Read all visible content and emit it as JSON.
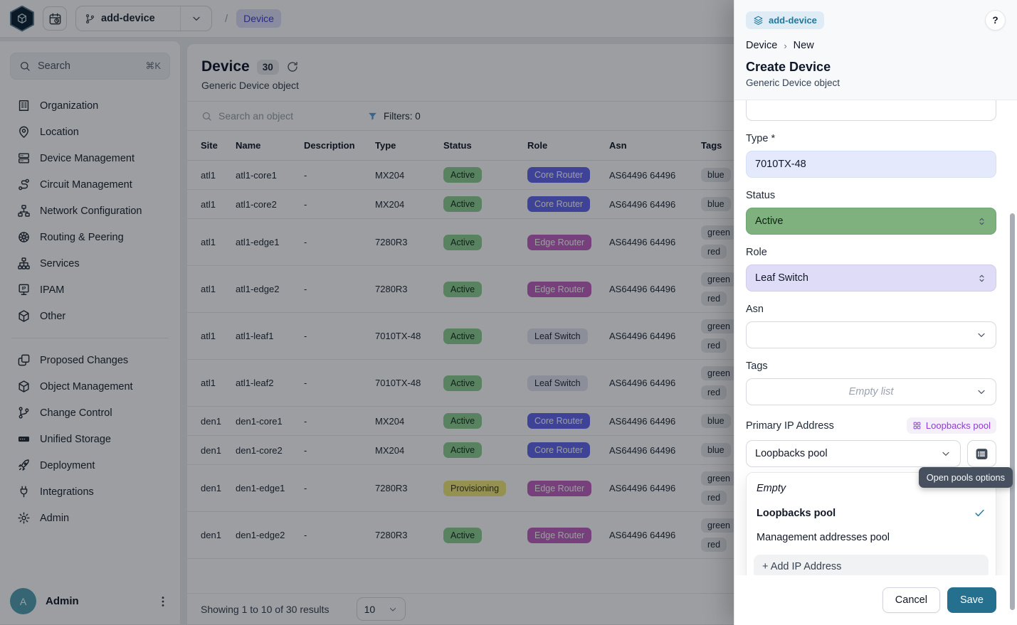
{
  "colors": {
    "save_button": "#26708f",
    "accent_indigo": "#4540c9",
    "branch_badge_teal": "#20789d",
    "status": {
      "Active": {
        "bg": "#8fd095",
        "fg": "#13301a"
      },
      "Provisioning": {
        "bg": "#f2ea7a",
        "fg": "#3d3810"
      }
    },
    "role": {
      "Core Router": {
        "bg": "#6468f0",
        "fg": "#ffffff"
      },
      "Edge Router": {
        "bg": "#c261c2",
        "fg": "#ffffff"
      },
      "Leaf Switch": {
        "bg": "#e4e4f4",
        "fg": "#1f2937"
      }
    }
  },
  "topbar": {
    "branch": "add-device",
    "separator": "/",
    "breadcrumb_current": "Device"
  },
  "sidebar": {
    "search": {
      "label": "Search",
      "shortcut": "⌘K"
    },
    "groups": [
      [
        {
          "label": "Organization",
          "icon": "building-icon"
        },
        {
          "label": "Location",
          "icon": "map-pin-icon"
        },
        {
          "label": "Device Management",
          "icon": "server-icon"
        },
        {
          "label": "Circuit Management",
          "icon": "route-icon"
        },
        {
          "label": "Network Configuration",
          "icon": "network-icon"
        },
        {
          "label": "Routing & Peering",
          "icon": "wheel-icon"
        },
        {
          "label": "Services",
          "icon": "hierarchy-icon"
        },
        {
          "label": "IPAM",
          "icon": "ipam-icon"
        },
        {
          "label": "Other",
          "icon": "cube-icon"
        }
      ],
      [
        {
          "label": "Proposed Changes",
          "icon": "diff-icon"
        },
        {
          "label": "Object Management",
          "icon": "cube-icon"
        },
        {
          "label": "Change Control",
          "icon": "git-branch-icon"
        },
        {
          "label": "Unified Storage",
          "icon": "storage-icon"
        },
        {
          "label": "Deployment",
          "icon": "rocket-icon"
        },
        {
          "label": "Integrations",
          "icon": "plug-icon"
        },
        {
          "label": "Admin",
          "icon": "gear-icon"
        }
      ]
    ],
    "user": {
      "name": "Admin",
      "initial": "A"
    }
  },
  "main": {
    "title": "Device",
    "count": "30",
    "subtitle": "Generic Device object",
    "search_placeholder": "Search an object",
    "filters_label": "Filters: 0",
    "table": {
      "columns": [
        "Site",
        "Name",
        "Description",
        "Type",
        "Status",
        "Role",
        "Asn",
        "Tags"
      ],
      "rows": [
        {
          "site": "atl1",
          "name": "atl1-core1",
          "description": "-",
          "type": "MX204",
          "status": "Active",
          "role": "Core Router",
          "asn": "AS64496 64496",
          "tags": [
            "blue"
          ]
        },
        {
          "site": "atl1",
          "name": "atl1-core2",
          "description": "-",
          "type": "MX204",
          "status": "Active",
          "role": "Core Router",
          "asn": "AS64496 64496",
          "tags": [
            "blue"
          ]
        },
        {
          "site": "atl1",
          "name": "atl1-edge1",
          "description": "-",
          "type": "7280R3",
          "status": "Active",
          "role": "Edge Router",
          "asn": "AS64496 64496",
          "tags": [
            "green",
            "red"
          ]
        },
        {
          "site": "atl1",
          "name": "atl1-edge2",
          "description": "-",
          "type": "7280R3",
          "status": "Active",
          "role": "Edge Router",
          "asn": "AS64496 64496",
          "tags": [
            "green",
            "red"
          ]
        },
        {
          "site": "atl1",
          "name": "atl1-leaf1",
          "description": "-",
          "type": "7010TX-48",
          "status": "Active",
          "role": "Leaf Switch",
          "asn": "AS64496 64496",
          "tags": [
            "green",
            "red"
          ]
        },
        {
          "site": "atl1",
          "name": "atl1-leaf2",
          "description": "-",
          "type": "7010TX-48",
          "status": "Active",
          "role": "Leaf Switch",
          "asn": "AS64496 64496",
          "tags": [
            "green",
            "red"
          ]
        },
        {
          "site": "den1",
          "name": "den1-core1",
          "description": "-",
          "type": "MX204",
          "status": "Active",
          "role": "Core Router",
          "asn": "AS64496 64496",
          "tags": [
            "blue"
          ]
        },
        {
          "site": "den1",
          "name": "den1-core2",
          "description": "-",
          "type": "MX204",
          "status": "Active",
          "role": "Core Router",
          "asn": "AS64496 64496",
          "tags": [
            "blue"
          ]
        },
        {
          "site": "den1",
          "name": "den1-edge1",
          "description": "-",
          "type": "7280R3",
          "status": "Provisioning",
          "role": "Edge Router",
          "asn": "AS64496 64496",
          "tags": [
            "green",
            "red"
          ]
        },
        {
          "site": "den1",
          "name": "den1-edge2",
          "description": "-",
          "type": "7280R3",
          "status": "Active",
          "role": "Edge Router",
          "asn": "AS64496 64496",
          "tags": [
            "green",
            "red"
          ]
        }
      ]
    },
    "footer": {
      "summary": "Showing 1 to 10 of 30 results",
      "page_size": "10"
    }
  },
  "drawer": {
    "branch_badge": "add-device",
    "help": "?",
    "breadcrumb": {
      "parent": "Device",
      "chevron": "›",
      "current": "New"
    },
    "title": "Create Device",
    "subtitle": "Generic Device object",
    "fields": {
      "type": {
        "label": "Type *",
        "value": "7010TX-48"
      },
      "status": {
        "label": "Status",
        "value": "Active"
      },
      "role": {
        "label": "Role",
        "value": "Leaf Switch"
      },
      "asn": {
        "label": "Asn",
        "value": ""
      },
      "tags": {
        "label": "Tags",
        "placeholder": "Empty list"
      },
      "primary_ip": {
        "label": "Primary IP Address",
        "pool_badge": "Loopbacks pool",
        "value": "Loopbacks pool"
      }
    },
    "pool_tooltip": "Open pools options",
    "dropdown": {
      "options": [
        {
          "label": "Empty",
          "italic": true,
          "selected": false
        },
        {
          "label": "Loopbacks pool",
          "italic": false,
          "selected": true
        },
        {
          "label": "Management addresses pool",
          "italic": false,
          "selected": false
        }
      ],
      "action": "+ Add IP Address"
    },
    "actions": {
      "cancel": "Cancel",
      "save": "Save"
    }
  }
}
